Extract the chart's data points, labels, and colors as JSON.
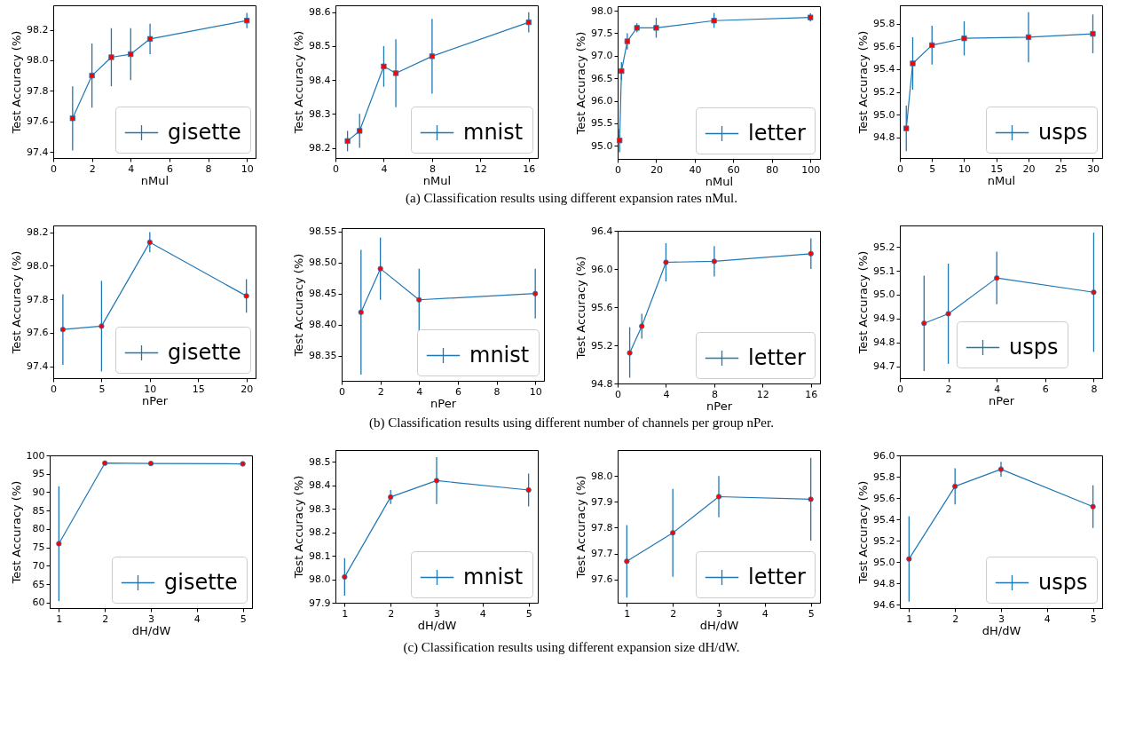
{
  "chart_data": [
    {
      "type": "line",
      "xlabel": "nMul",
      "ylabel": "Test Accuracy (%)",
      "marker": "square",
      "legend": "bottom right",
      "annotations": [
        "(a) Classification results using different expansion rates nMul."
      ],
      "x": [
        1,
        2,
        3,
        4,
        5,
        10
      ],
      "xlim": [
        0,
        10.45
      ],
      "xticks": [
        0,
        2,
        4,
        6,
        8,
        10
      ],
      "ylim": [
        97.36,
        98.36
      ],
      "yticks": [
        97.4,
        97.6,
        97.8,
        {
          "value": 98,
          "label": "98.0"
        },
        98.2
      ],
      "series": [
        {
          "name": "gisette",
          "color": "#1f77b4",
          "values": [
            97.62,
            97.9,
            98.02,
            98.04,
            98.14,
            98.26
          ],
          "errors": [
            [
              97.41,
              97.83
            ],
            [
              97.69,
              98.11
            ],
            [
              97.83,
              98.21
            ],
            [
              97.87,
              98.21
            ],
            [
              98.04,
              98.24
            ],
            [
              98.21,
              98.31
            ]
          ]
        }
      ]
    },
    {
      "type": "line",
      "xlabel": "nMul",
      "ylabel": "Test Accuracy (%)",
      "marker": "square",
      "legend": "bottom right",
      "x": [
        1,
        2,
        4,
        5,
        8,
        16
      ],
      "xlim": [
        0,
        16.75
      ],
      "xticks": [
        0,
        4,
        8,
        12,
        16
      ],
      "ylim": [
        98.17,
        98.62
      ],
      "yticks": [
        98.2,
        98.3,
        98.4,
        98.5,
        98.6
      ],
      "series": [
        {
          "name": "mnist",
          "color": "#1f77b4",
          "values": [
            98.22,
            98.25,
            98.44,
            98.42,
            98.47,
            98.57
          ],
          "errors": [
            [
              98.19,
              98.25
            ],
            [
              98.2,
              98.3
            ],
            [
              98.38,
              98.5
            ],
            [
              98.32,
              98.52
            ],
            [
              98.36,
              98.58
            ],
            [
              98.54,
              98.6
            ]
          ]
        }
      ]
    },
    {
      "type": "line",
      "xlabel": "nMul",
      "ylabel": "Test Accuracy (%)",
      "marker": "square",
      "legend": "bottom right",
      "x": [
        1,
        2,
        5,
        10,
        20,
        50,
        100
      ],
      "xlim": [
        0,
        104.95
      ],
      "xticks": [
        0,
        20,
        40,
        60,
        80,
        100
      ],
      "ylim": [
        94.71,
        98.1
      ],
      "yticks": [
        {
          "value": 95,
          "label": "95.0"
        },
        95.5,
        {
          "value": 96,
          "label": "96.0"
        },
        96.5,
        {
          "value": 97,
          "label": "97.0"
        },
        97.5,
        {
          "value": 98,
          "label": "98.0"
        }
      ],
      "series": [
        {
          "name": "letter",
          "color": "#1f77b4",
          "values": [
            95.12,
            96.66,
            97.32,
            97.62,
            97.62,
            97.78,
            97.85
          ],
          "errors": [
            [
              94.86,
              95.38
            ],
            [
              96.46,
              96.86
            ],
            [
              97.14,
              97.5
            ],
            [
              97.52,
              97.72
            ],
            [
              97.4,
              97.84
            ],
            [
              97.62,
              97.95
            ],
            [
              97.76,
              97.94
            ]
          ]
        }
      ]
    },
    {
      "type": "line",
      "xlabel": "nMul",
      "ylabel": "Test Accuracy (%)",
      "marker": "square",
      "legend": "bottom right",
      "x": [
        1,
        2,
        5,
        10,
        20,
        30
      ],
      "xlim": [
        0,
        31.45
      ],
      "xticks": [
        0,
        5,
        10,
        15,
        20,
        25,
        30
      ],
      "ylim": [
        94.62,
        95.96
      ],
      "yticks": [
        94.8,
        {
          "value": 95,
          "label": "95.0"
        },
        95.2,
        95.4,
        95.6,
        95.8
      ],
      "series": [
        {
          "name": "usps",
          "color": "#1f77b4",
          "values": [
            94.88,
            95.45,
            95.61,
            95.67,
            95.68,
            95.71
          ],
          "errors": [
            [
              94.68,
              95.08
            ],
            [
              95.22,
              95.68
            ],
            [
              95.44,
              95.78
            ],
            [
              95.52,
              95.82
            ],
            [
              95.46,
              95.9
            ],
            [
              95.54,
              95.88
            ]
          ]
        }
      ]
    },
    {
      "type": "line",
      "xlabel": "nPer",
      "ylabel": "Test Accuracy (%)",
      "marker": "circle",
      "legend": "bottom right",
      "annotations": [
        "(b) Classification results using different number of channels per group nPer."
      ],
      "x": [
        1,
        5,
        10,
        20
      ],
      "xlim": [
        0,
        20.95
      ],
      "xticks": [
        0,
        5,
        10,
        15,
        20
      ],
      "ylim": [
        97.33,
        98.24
      ],
      "yticks": [
        97.4,
        97.6,
        97.8,
        {
          "value": 98,
          "label": "98.0"
        },
        98.2
      ],
      "series": [
        {
          "name": "gisette",
          "color": "#1f77b4",
          "values": [
            97.62,
            97.64,
            98.14,
            97.82
          ],
          "errors": [
            [
              97.41,
              97.83
            ],
            [
              97.37,
              97.91
            ],
            [
              98.08,
              98.2
            ],
            [
              97.72,
              97.92
            ]
          ]
        }
      ]
    },
    {
      "type": "line",
      "xlabel": "nPer",
      "ylabel": "Test Accuracy (%)",
      "marker": "circle",
      "legend": "bottom right",
      "x": [
        1,
        2,
        4,
        10
      ],
      "xlim": [
        0,
        10.45
      ],
      "xticks": [
        0,
        2,
        4,
        6,
        8,
        10
      ],
      "ylim": [
        98.31,
        98.555
      ],
      "yticks": [
        98.35,
        {
          "value": 98.4,
          "label": "98.40"
        },
        98.45,
        {
          "value": 98.5,
          "label": "98.50"
        },
        98.55
      ],
      "series": [
        {
          "name": "mnist",
          "color": "#1f77b4",
          "values": [
            98.42,
            98.49,
            98.44,
            98.45
          ],
          "errors": [
            [
              98.32,
              98.52
            ],
            [
              98.44,
              98.54
            ],
            [
              98.39,
              98.49
            ],
            [
              98.41,
              98.49
            ]
          ]
        }
      ]
    },
    {
      "type": "line",
      "xlabel": "nPer",
      "ylabel": "Test Accuracy (%)",
      "marker": "circle",
      "legend": "bottom right",
      "x": [
        1,
        2,
        4,
        8,
        16
      ],
      "xlim": [
        0,
        16.75
      ],
      "xticks": [
        0,
        4,
        8,
        12,
        16
      ],
      "ylim": [
        94.8,
        96.4
      ],
      "yticks": [
        94.8,
        95.2,
        95.6,
        {
          "value": 96,
          "label": "96.0"
        },
        96.4
      ],
      "series": [
        {
          "name": "letter",
          "color": "#1f77b4",
          "values": [
            95.12,
            95.4,
            96.07,
            96.08,
            96.16
          ],
          "errors": [
            [
              94.86,
              95.39
            ],
            [
              95.27,
              95.53
            ],
            [
              95.87,
              96.27
            ],
            [
              95.92,
              96.24
            ],
            [
              96.0,
              96.32
            ]
          ]
        }
      ]
    },
    {
      "type": "line",
      "xlabel": "nPer",
      "ylabel": "Test Accuracy (%)",
      "marker": "circle",
      "legend": "bottom",
      "x": [
        1,
        2,
        4,
        8
      ],
      "xlim": [
        0,
        8.35
      ],
      "xticks": [
        0,
        2,
        4,
        6,
        8
      ],
      "ylim": [
        94.65,
        95.29
      ],
      "yticks": [
        94.7,
        94.8,
        94.9,
        {
          "value": 95,
          "label": "95.0"
        },
        95.1,
        95.2
      ],
      "series": [
        {
          "name": "usps",
          "color": "#1f77b4",
          "values": [
            94.88,
            94.92,
            95.07,
            95.01
          ],
          "errors": [
            [
              94.68,
              95.08
            ],
            [
              94.71,
              95.13
            ],
            [
              94.96,
              95.18
            ],
            [
              94.76,
              95.26
            ]
          ]
        }
      ]
    },
    {
      "type": "line",
      "xlabel": "dH/dW",
      "ylabel": "Test Accuracy (%)",
      "marker": "circle",
      "legend": "bottom right",
      "annotations": [
        "(c) Classification results using different expansion size dH/dW."
      ],
      "x": [
        1,
        2,
        3,
        5
      ],
      "xlim": [
        0.8,
        5.2
      ],
      "xticks": [
        1,
        2,
        3,
        4,
        5
      ],
      "ylim": [
        58.5,
        100
      ],
      "yticks": [
        60,
        65,
        70,
        75,
        80,
        85,
        90,
        95,
        100
      ],
      "series": [
        {
          "name": "gisette",
          "color": "#1f77b4",
          "values": [
            76.0,
            97.9,
            97.8,
            97.7
          ],
          "errors": [
            [
              60.4,
              91.6
            ],
            null,
            null,
            null
          ]
        }
      ]
    },
    {
      "type": "line",
      "xlabel": "dH/dW",
      "ylabel": "Test Accuracy (%)",
      "marker": "circle",
      "legend": "bottom right",
      "x": [
        1,
        2,
        3,
        5
      ],
      "xlim": [
        0.8,
        5.2
      ],
      "xticks": [
        1,
        2,
        3,
        4,
        5
      ],
      "ylim": [
        97.9,
        98.55
      ],
      "yticks": [
        97.9,
        {
          "value": 98,
          "label": "98.0"
        },
        98.1,
        98.2,
        98.3,
        98.4,
        98.5
      ],
      "series": [
        {
          "name": "mnist",
          "color": "#1f77b4",
          "values": [
            98.01,
            98.35,
            98.42,
            98.38
          ],
          "errors": [
            [
              97.93,
              98.09
            ],
            [
              98.32,
              98.38
            ],
            [
              98.32,
              98.52
            ],
            [
              98.31,
              98.45
            ]
          ]
        }
      ]
    },
    {
      "type": "line",
      "xlabel": "dH/dW",
      "ylabel": "Test Accuracy (%)",
      "marker": "circle",
      "legend": "bottom right",
      "x": [
        1,
        2,
        3,
        5
      ],
      "xlim": [
        0.8,
        5.2
      ],
      "xticks": [
        1,
        2,
        3,
        4,
        5
      ],
      "ylim": [
        97.51,
        98.1
      ],
      "yticks": [
        97.6,
        97.7,
        97.8,
        97.9,
        {
          "value": 98,
          "label": "98.0"
        }
      ],
      "series": [
        {
          "name": "letter",
          "color": "#1f77b4",
          "values": [
            97.67,
            97.78,
            97.92,
            97.91
          ],
          "errors": [
            [
              97.53,
              97.81
            ],
            [
              97.61,
              97.95
            ],
            [
              97.84,
              98.0
            ],
            [
              97.75,
              98.07
            ]
          ]
        }
      ]
    },
    {
      "type": "line",
      "xlabel": "dH/dW",
      "ylabel": "Test Accuracy (%)",
      "marker": "circle",
      "legend": "bottom right",
      "x": [
        1,
        2,
        3,
        5
      ],
      "xlim": [
        0.8,
        5.2
      ],
      "xticks": [
        1,
        2,
        3,
        4,
        5
      ],
      "ylim": [
        94.57,
        96.0
      ],
      "yticks": [
        94.6,
        94.8,
        {
          "value": 95,
          "label": "95.0"
        },
        95.2,
        95.4,
        95.6,
        95.8,
        {
          "value": 96,
          "label": "96.0"
        }
      ],
      "series": [
        {
          "name": "usps",
          "color": "#1f77b4",
          "values": [
            95.03,
            95.71,
            95.87,
            95.52
          ],
          "errors": [
            [
              94.63,
              95.43
            ],
            [
              95.54,
              95.88
            ],
            [
              95.8,
              95.94
            ],
            [
              95.32,
              95.72
            ]
          ]
        }
      ]
    }
  ]
}
